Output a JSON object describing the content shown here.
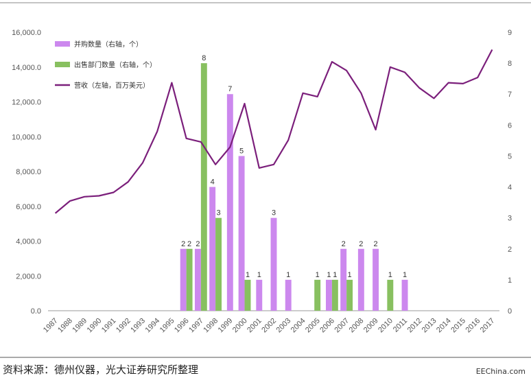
{
  "chart_data": {
    "type": "bar",
    "categories": [
      "1987",
      "1988",
      "1989",
      "1990",
      "1991",
      "1992",
      "1993",
      "1994",
      "1995",
      "1996",
      "1997",
      "1998",
      "1999",
      "2000",
      "2001",
      "2002",
      "2003",
      "2004",
      "2005",
      "2006",
      "2007",
      "2008",
      "2009",
      "2010",
      "2011",
      "2012",
      "2013",
      "2014",
      "2015",
      "2016",
      "2017"
    ],
    "series": [
      {
        "name": "并购数量（右轴，个）",
        "type": "bar",
        "axis": "right",
        "color": "#cc88ee",
        "values": [
          null,
          null,
          null,
          null,
          null,
          null,
          null,
          null,
          null,
          2,
          2,
          4,
          7,
          5,
          1,
          3,
          1,
          null,
          null,
          1,
          2,
          2,
          2,
          null,
          1,
          null,
          null,
          null,
          null,
          null,
          null
        ]
      },
      {
        "name": "出售部门数量（右轴，个）",
        "type": "bar",
        "axis": "right",
        "color": "#88c060",
        "values": [
          null,
          null,
          null,
          null,
          null,
          null,
          null,
          null,
          null,
          2,
          8,
          3,
          null,
          1,
          null,
          null,
          null,
          null,
          1,
          1,
          1,
          null,
          null,
          1,
          null,
          null,
          null,
          null,
          null,
          null,
          null
        ]
      },
      {
        "name": "营收（左轴，百万美元）",
        "type": "line",
        "axis": "left",
        "color": "#7b1f7b",
        "values": [
          5600,
          6300,
          6550,
          6600,
          6800,
          7400,
          8500,
          10300,
          13100,
          9900,
          9700,
          8400,
          9400,
          11900,
          8200,
          8400,
          9800,
          12500,
          12300,
          14300,
          13800,
          12500,
          10400,
          14000,
          13700,
          12800,
          12200,
          13100,
          13050,
          13400,
          15000
        ]
      }
    ],
    "ylim_left": [
      0,
      16000
    ],
    "ylim_right": [
      0,
      9
    ],
    "yticks_left": [
      "0.0",
      "2,000.0",
      "4,000.0",
      "6,000.0",
      "8,000.0",
      "10,000.0",
      "12,000.0",
      "14,000.0",
      "16,000.0"
    ],
    "yticks_right": [
      "0",
      "1",
      "2",
      "3",
      "4",
      "5",
      "6",
      "7",
      "8",
      "9"
    ],
    "legend_position": "top-left",
    "grid": false
  },
  "footer": {
    "source": "资料来源：德州仪器，光大证券研究所整理",
    "brand": "EEChina.com"
  }
}
